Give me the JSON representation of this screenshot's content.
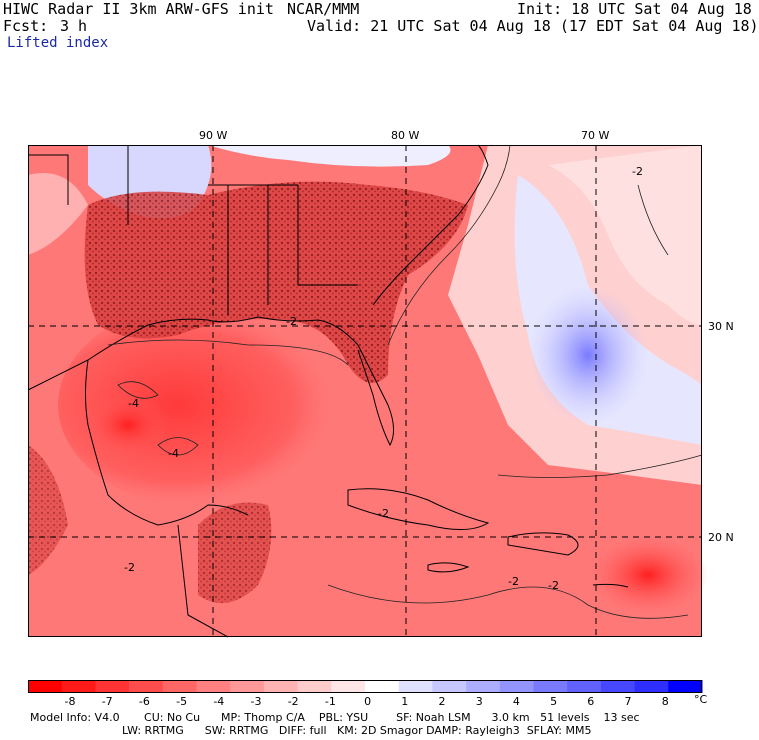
{
  "header": {
    "title": "HIWC Radar II 3km ARW-GFS init",
    "org": "NCAR/MMM",
    "init": "Init: 18 UTC Sat 04 Aug 18",
    "fcst_label": "Fcst:",
    "fcst_value": "3 h",
    "valid": "Valid: 21 UTC Sat 04 Aug 18 (17 EDT Sat 04 Aug 18)",
    "field": "Lifted index"
  },
  "map": {
    "lon_labels": [
      "90 W",
      "80 W",
      "70 W"
    ],
    "lat_labels": [
      "30 N",
      "20 N"
    ],
    "contour_labels": [
      "-2",
      "-2",
      "-4",
      "-4",
      "-2",
      "-2",
      "-2",
      "-2"
    ]
  },
  "colorbar": {
    "labels": [
      "-8",
      "-7",
      "-6",
      "-5",
      "-4",
      "-3",
      "-2",
      "-1",
      "0",
      "1",
      "2",
      "3",
      "4",
      "5",
      "6",
      "7",
      "8"
    ],
    "unit": "°C",
    "colors": [
      "#ff0000",
      "#ff1a1a",
      "#ff3333",
      "#ff4d4d",
      "#ff6666",
      "#ff8080",
      "#ff9999",
      "#ffb3b3",
      "#ffcccc",
      "#ffe6e6",
      "#ffffff",
      "#e0e0ff",
      "#c7c7ff",
      "#adadff",
      "#9494ff",
      "#7a7aff",
      "#6161ff",
      "#4747ff",
      "#2e2eff",
      "#0000ff"
    ]
  },
  "footer": {
    "line1": "Model Info: V4.0       CU: No Cu      MP: Thomp C/A    PBL: YSU        SF: Noah LSM      3.0 km   51 levels    13 sec",
    "line2": "LW: RRTMG      SW: RRTMG   DIFF: full   KM: 2D Smagor DAMP: Rayleigh3  SFLAY: MM5"
  }
}
